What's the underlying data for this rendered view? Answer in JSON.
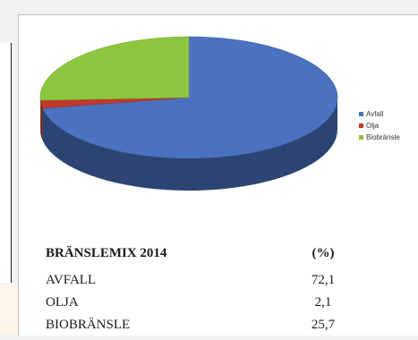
{
  "chart_data": {
    "type": "pie",
    "categories": [
      "Avfall",
      "Olja",
      "Biobränsle"
    ],
    "values": [
      72.1,
      2.1,
      25.7
    ],
    "colors": [
      "#4a72c0",
      "#c0392b",
      "#8cc63f"
    ],
    "legend_position": "right"
  },
  "table": {
    "title": "BRÄNSLEMIX 2014",
    "unit": "(%)",
    "rows": [
      {
        "label": "AVFALL",
        "value": "72,1"
      },
      {
        "label": "OLJA",
        "value": "2,1"
      },
      {
        "label": "BIOBRÄNSLE",
        "value": "25,7"
      }
    ]
  }
}
